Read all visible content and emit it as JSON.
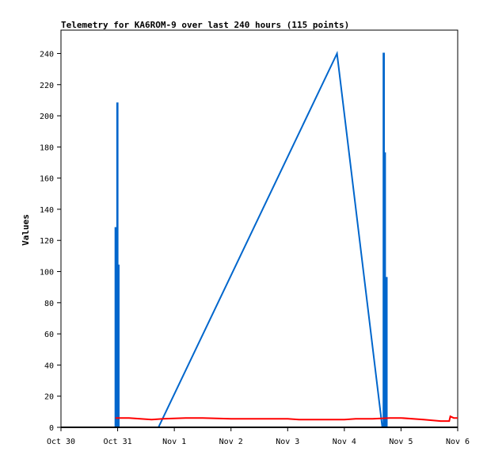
{
  "chart_data": {
    "type": "line",
    "title": "Telemetry for KA6ROM-9 over last 240 hours (115 points)",
    "xlabel": "",
    "ylabel": "Values",
    "x_tick_labels": [
      "Oct 30",
      "Oct 31",
      "Nov 1",
      "Nov 2",
      "Nov 3",
      "Nov 4",
      "Nov 5",
      "Nov 6"
    ],
    "y_ticks": [
      0,
      20,
      40,
      60,
      80,
      100,
      120,
      140,
      160,
      180,
      200,
      220,
      240
    ],
    "xlim_days": [
      0,
      7
    ],
    "ylim": [
      0,
      255
    ],
    "grid": false,
    "series": [
      {
        "color": "#0066cc",
        "points": [
          [
            0.96,
            0
          ],
          [
            0.96,
            128
          ],
          [
            0.975,
            128
          ],
          [
            0.975,
            0
          ],
          [
            0.99,
            0
          ],
          [
            0.99,
            208
          ],
          [
            1.0,
            208
          ],
          [
            1.0,
            0
          ],
          [
            1.01,
            0
          ],
          [
            1.01,
            104
          ],
          [
            1.02,
            104
          ],
          [
            1.02,
            0
          ],
          [
            1.72,
            0
          ],
          [
            4.87,
            240
          ],
          [
            5.67,
            0
          ],
          [
            5.69,
            0
          ],
          [
            5.69,
            240
          ],
          [
            5.7,
            240
          ],
          [
            5.7,
            0
          ],
          [
            5.71,
            0
          ],
          [
            5.71,
            176
          ],
          [
            5.72,
            176
          ],
          [
            5.72,
            0
          ],
          [
            5.73,
            0
          ],
          [
            5.73,
            96
          ],
          [
            5.75,
            96
          ],
          [
            5.75,
            0
          ]
        ]
      },
      {
        "color": "#ff0000",
        "points": [
          [
            0.96,
            6
          ],
          [
            1.2,
            6
          ],
          [
            1.4,
            5.5
          ],
          [
            1.6,
            5
          ],
          [
            1.8,
            5.5
          ],
          [
            2.2,
            6
          ],
          [
            2.5,
            6
          ],
          [
            3.0,
            5.5
          ],
          [
            3.5,
            5.5
          ],
          [
            4.0,
            5.5
          ],
          [
            4.2,
            5
          ],
          [
            4.5,
            5
          ],
          [
            5.0,
            5
          ],
          [
            5.2,
            5.5
          ],
          [
            5.5,
            5.5
          ],
          [
            5.8,
            6
          ],
          [
            6.0,
            6
          ],
          [
            6.4,
            5
          ],
          [
            6.7,
            4
          ],
          [
            6.85,
            4
          ],
          [
            6.87,
            7
          ],
          [
            6.93,
            6
          ],
          [
            7.0,
            6
          ]
        ]
      },
      {
        "color": "#000000",
        "points": [
          [
            0,
            0
          ],
          [
            7,
            0
          ]
        ]
      }
    ]
  }
}
